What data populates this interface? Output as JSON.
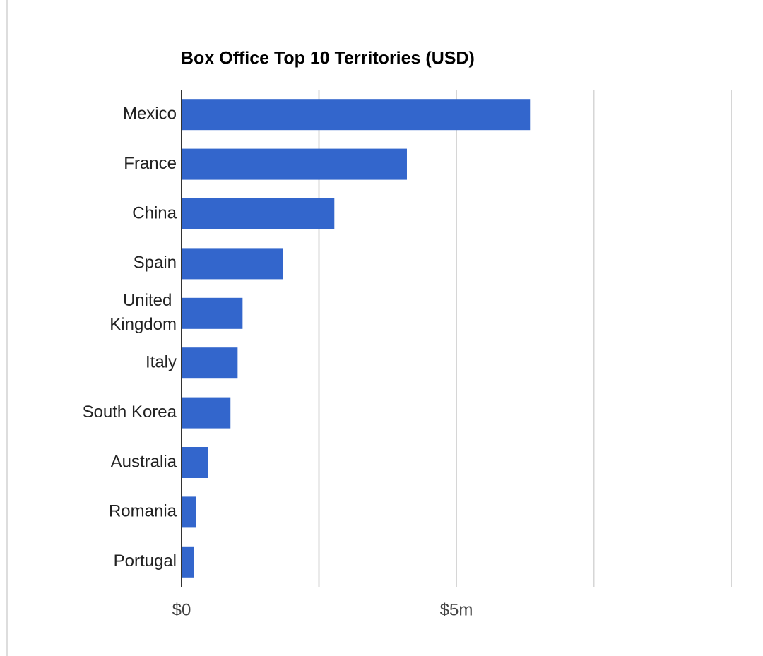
{
  "chart_data": {
    "type": "hbar",
    "title": "Box Office Top 10 Territories (USD)",
    "categories": [
      "Mexico",
      "France",
      "China",
      "Spain",
      "United Kingdom",
      "Italy",
      "South Korea",
      "Australia",
      "Romania",
      "Portugal"
    ],
    "values": [
      6340000,
      4100000,
      2780000,
      1840000,
      1110000,
      1020000,
      890000,
      480000,
      260000,
      220000
    ],
    "color": "#3366cc",
    "xlim": [
      0,
      10000000
    ],
    "xticks": [
      {
        "value": 0,
        "label": "$0"
      },
      {
        "value": 5000000,
        "label": "$5m"
      }
    ],
    "grid_lines": [
      2500000,
      5000000,
      7500000,
      10000000
    ]
  }
}
